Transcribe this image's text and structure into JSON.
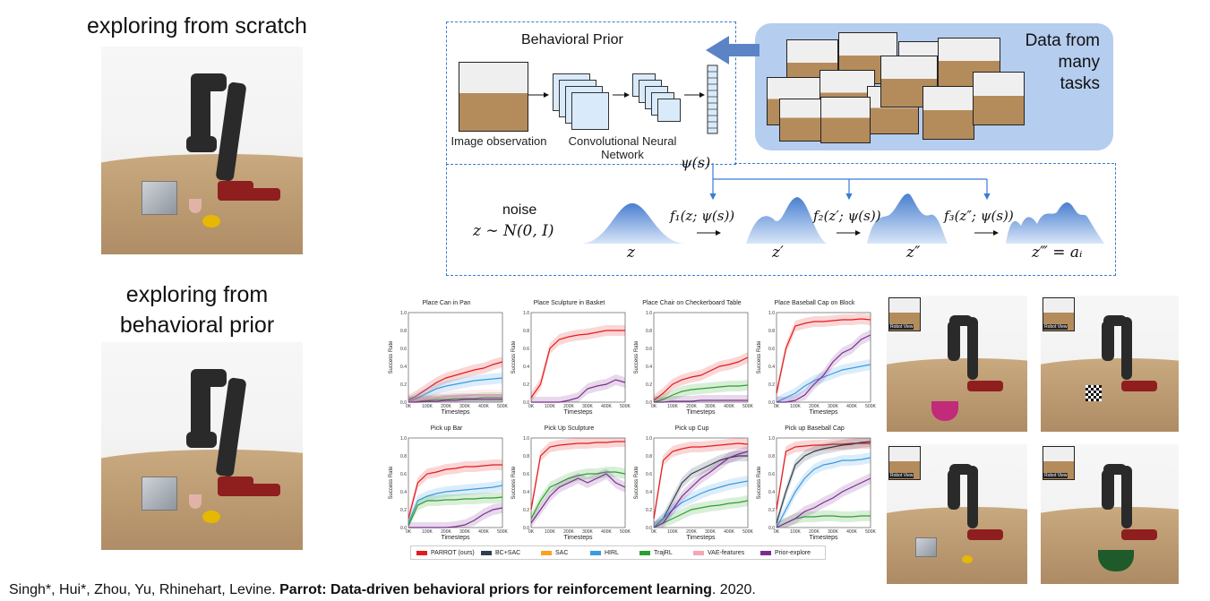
{
  "left": {
    "top_heading": "exploring from scratch",
    "bottom_heading_line1": "exploring from",
    "bottom_heading_line2": "behavioral prior"
  },
  "diagram": {
    "behavioral_prior_title": "Behavioral Prior",
    "data_from_line1": "Data from",
    "data_from_line2": "many",
    "data_from_line3": "tasks",
    "image_observation": "Image observation",
    "cnn_line1": "Convolutional Neural",
    "cnn_line2": "Network",
    "psi": "ψ(s)",
    "noise": "noise",
    "z_dist": "z ∼ N(0, I)",
    "f1": "f₁(z; ψ(s))",
    "f2": "f₂(z′; ψ(s))",
    "f3": "f₃(z″; ψ(s))",
    "z0": "z",
    "z1": "z′",
    "z2": "z″",
    "z3": "z‴ = aᵢ"
  },
  "robot_views": {
    "label": "Robot View"
  },
  "chart_data": [
    {
      "type": "line",
      "title": "Place Can in Pan",
      "xlabel": "Timesteps",
      "ylabel": "Success Rate",
      "ylim": [
        0,
        1.0
      ],
      "xticks": [
        "0K",
        "100K",
        "200K",
        "300K",
        "400K",
        "500K"
      ],
      "yticks": [
        "0.0",
        "0.2",
        "0.4",
        "0.6",
        "0.8",
        "1.0"
      ],
      "x": [
        0,
        50,
        100,
        150,
        200,
        250,
        300,
        350,
        400,
        450,
        500
      ],
      "series": [
        {
          "name": "PARROT (ours)",
          "values": [
            0.02,
            0.08,
            0.15,
            0.22,
            0.27,
            0.3,
            0.33,
            0.36,
            0.38,
            0.42,
            0.45
          ]
        },
        {
          "name": "HIRL",
          "values": [
            0.0,
            0.05,
            0.1,
            0.15,
            0.18,
            0.2,
            0.22,
            0.24,
            0.25,
            0.26,
            0.27
          ]
        },
        {
          "name": "TrajRL",
          "values": [
            0.0,
            0.01,
            0.02,
            0.03,
            0.03,
            0.04,
            0.04,
            0.04,
            0.05,
            0.05,
            0.05
          ]
        },
        {
          "name": "VAE-features",
          "values": [
            0.0,
            0.02,
            0.04,
            0.05,
            0.06,
            0.07,
            0.07,
            0.08,
            0.08,
            0.08,
            0.08
          ]
        },
        {
          "name": "Prior-explore",
          "values": [
            0.0,
            0.0,
            0.01,
            0.01,
            0.02,
            0.02,
            0.03,
            0.03,
            0.03,
            0.03,
            0.03
          ]
        }
      ]
    },
    {
      "type": "line",
      "title": "Place Sculpture in Basket",
      "xlabel": "Timesteps",
      "ylabel": "Success Rate",
      "ylim": [
        0,
        1.0
      ],
      "xticks": [
        "0K",
        "100K",
        "200K",
        "300K",
        "400K",
        "500K"
      ],
      "yticks": [
        "0.0",
        "0.2",
        "0.4",
        "0.6",
        "0.8",
        "1.0"
      ],
      "x": [
        0,
        50,
        100,
        150,
        200,
        250,
        300,
        350,
        400,
        450,
        500
      ],
      "series": [
        {
          "name": "PARROT (ours)",
          "values": [
            0.05,
            0.2,
            0.6,
            0.7,
            0.73,
            0.75,
            0.76,
            0.78,
            0.8,
            0.8,
            0.8
          ]
        },
        {
          "name": "Prior-explore",
          "values": [
            0.0,
            0.0,
            0.0,
            0.0,
            0.02,
            0.05,
            0.15,
            0.18,
            0.2,
            0.25,
            0.22
          ]
        }
      ]
    },
    {
      "type": "line",
      "title": "Place Chair on Checkerboard Table",
      "xlabel": "Timesteps",
      "ylabel": "Success Rate",
      "ylim": [
        0,
        1.0
      ],
      "xticks": [
        "0K",
        "100K",
        "200K",
        "300K",
        "400K",
        "500K"
      ],
      "yticks": [
        "0.0",
        "0.2",
        "0.4",
        "0.6",
        "0.8",
        "1.0"
      ],
      "x": [
        0,
        50,
        100,
        150,
        200,
        250,
        300,
        350,
        400,
        450,
        500
      ],
      "series": [
        {
          "name": "PARROT (ours)",
          "values": [
            0.02,
            0.1,
            0.2,
            0.25,
            0.28,
            0.3,
            0.35,
            0.4,
            0.42,
            0.45,
            0.5
          ]
        },
        {
          "name": "TrajRL",
          "values": [
            0.0,
            0.03,
            0.08,
            0.12,
            0.14,
            0.15,
            0.16,
            0.17,
            0.18,
            0.18,
            0.19
          ]
        },
        {
          "name": "Prior-explore",
          "values": [
            0.0,
            0.0,
            0.01,
            0.01,
            0.01,
            0.02,
            0.02,
            0.02,
            0.02,
            0.02,
            0.02
          ]
        }
      ]
    },
    {
      "type": "line",
      "title": "Place Baseball Cap on Block",
      "xlabel": "Timesteps",
      "ylabel": "Success Rate",
      "ylim": [
        0,
        1.0
      ],
      "xticks": [
        "0K",
        "100K",
        "200K",
        "300K",
        "400K",
        "500K"
      ],
      "yticks": [
        "0.0",
        "0.2",
        "0.4",
        "0.6",
        "0.8",
        "1.0"
      ],
      "x": [
        0,
        50,
        100,
        150,
        200,
        250,
        300,
        350,
        400,
        450,
        500
      ],
      "series": [
        {
          "name": "PARROT (ours)",
          "values": [
            0.1,
            0.6,
            0.85,
            0.88,
            0.9,
            0.9,
            0.91,
            0.92,
            0.92,
            0.93,
            0.92
          ]
        },
        {
          "name": "HIRL",
          "values": [
            0.0,
            0.05,
            0.1,
            0.18,
            0.24,
            0.28,
            0.32,
            0.36,
            0.38,
            0.4,
            0.42
          ]
        },
        {
          "name": "Prior-explore",
          "values": [
            0.0,
            0.0,
            0.02,
            0.08,
            0.2,
            0.3,
            0.45,
            0.55,
            0.6,
            0.7,
            0.75
          ]
        }
      ]
    },
    {
      "type": "line",
      "title": "Pick up Bar",
      "xlabel": "Timesteps",
      "ylabel": "Success Rate",
      "ylim": [
        0,
        1.0
      ],
      "xticks": [
        "0K",
        "100K",
        "200K",
        "300K",
        "400K",
        "500K"
      ],
      "yticks": [
        "0.0",
        "0.2",
        "0.4",
        "0.6",
        "0.8",
        "1.0"
      ],
      "x": [
        0,
        50,
        100,
        150,
        200,
        250,
        300,
        350,
        400,
        450,
        500
      ],
      "series": [
        {
          "name": "PARROT (ours)",
          "values": [
            0.1,
            0.5,
            0.6,
            0.62,
            0.65,
            0.66,
            0.68,
            0.68,
            0.69,
            0.7,
            0.7
          ]
        },
        {
          "name": "HIRL",
          "values": [
            0.05,
            0.3,
            0.35,
            0.38,
            0.4,
            0.41,
            0.42,
            0.43,
            0.44,
            0.45,
            0.47
          ]
        },
        {
          "name": "TrajRL",
          "values": [
            0.02,
            0.25,
            0.3,
            0.3,
            0.31,
            0.31,
            0.32,
            0.32,
            0.33,
            0.33,
            0.34
          ]
        },
        {
          "name": "Prior-explore",
          "values": [
            0.0,
            0.0,
            0.0,
            0.0,
            0.0,
            0.01,
            0.03,
            0.08,
            0.15,
            0.2,
            0.22
          ]
        }
      ]
    },
    {
      "type": "line",
      "title": "Pick Up Sculpture",
      "xlabel": "Timesteps",
      "ylabel": "Success Rate",
      "ylim": [
        0,
        1.0
      ],
      "xticks": [
        "0K",
        "100K",
        "200K",
        "300K",
        "400K",
        "500K"
      ],
      "yticks": [
        "0.0",
        "0.2",
        "0.4",
        "0.6",
        "0.8",
        "1.0"
      ],
      "x": [
        0,
        50,
        100,
        150,
        200,
        250,
        300,
        350,
        400,
        450,
        500
      ],
      "series": [
        {
          "name": "PARROT (ours)",
          "values": [
            0.2,
            0.8,
            0.9,
            0.92,
            0.93,
            0.94,
            0.94,
            0.95,
            0.95,
            0.96,
            0.96
          ]
        },
        {
          "name": "TrajRL",
          "values": [
            0.1,
            0.3,
            0.45,
            0.5,
            0.55,
            0.58,
            0.6,
            0.6,
            0.62,
            0.62,
            0.6
          ]
        },
        {
          "name": "Prior-explore",
          "values": [
            0.05,
            0.2,
            0.35,
            0.45,
            0.5,
            0.55,
            0.5,
            0.55,
            0.6,
            0.5,
            0.45
          ]
        }
      ]
    },
    {
      "type": "line",
      "title": "Pick up Cup",
      "xlabel": "Timesteps",
      "ylabel": "Success Rate",
      "ylim": [
        0,
        1.0
      ],
      "xticks": [
        "0K",
        "100K",
        "200K",
        "300K",
        "400K",
        "500K"
      ],
      "yticks": [
        "0.0",
        "0.2",
        "0.4",
        "0.6",
        "0.8",
        "1.0"
      ],
      "x": [
        0,
        50,
        100,
        150,
        200,
        250,
        300,
        350,
        400,
        450,
        500
      ],
      "series": [
        {
          "name": "PARROT (ours)",
          "values": [
            0.1,
            0.75,
            0.85,
            0.88,
            0.9,
            0.9,
            0.91,
            0.92,
            0.93,
            0.94,
            0.93
          ]
        },
        {
          "name": "BC+SAC",
          "values": [
            0.0,
            0.1,
            0.3,
            0.5,
            0.6,
            0.65,
            0.7,
            0.75,
            0.78,
            0.8,
            0.8
          ]
        },
        {
          "name": "HIRL",
          "values": [
            0.0,
            0.1,
            0.2,
            0.28,
            0.33,
            0.38,
            0.42,
            0.45,
            0.48,
            0.5,
            0.52
          ]
        },
        {
          "name": "TrajRL",
          "values": [
            0.0,
            0.05,
            0.1,
            0.15,
            0.2,
            0.22,
            0.24,
            0.25,
            0.27,
            0.28,
            0.3
          ]
        },
        {
          "name": "Prior-explore",
          "values": [
            0.0,
            0.05,
            0.2,
            0.35,
            0.45,
            0.55,
            0.62,
            0.7,
            0.78,
            0.82,
            0.85
          ]
        }
      ]
    },
    {
      "type": "line",
      "title": "Pick up Baseball Cap",
      "xlabel": "Timesteps",
      "ylabel": "Success Rate",
      "ylim": [
        0,
        1.0
      ],
      "xticks": [
        "0K",
        "100K",
        "200K",
        "300K",
        "400K",
        "500K"
      ],
      "yticks": [
        "0.0",
        "0.2",
        "0.4",
        "0.6",
        "0.8",
        "1.0"
      ],
      "x": [
        0,
        50,
        100,
        150,
        200,
        250,
        300,
        350,
        400,
        450,
        500
      ],
      "series": [
        {
          "name": "PARROT (ours)",
          "values": [
            0.2,
            0.85,
            0.9,
            0.91,
            0.92,
            0.92,
            0.93,
            0.93,
            0.94,
            0.94,
            0.94
          ]
        },
        {
          "name": "BC+SAC",
          "values": [
            0.05,
            0.4,
            0.7,
            0.8,
            0.85,
            0.88,
            0.9,
            0.92,
            0.93,
            0.95,
            0.96
          ]
        },
        {
          "name": "HIRL",
          "values": [
            0.0,
            0.2,
            0.4,
            0.55,
            0.65,
            0.7,
            0.72,
            0.75,
            0.75,
            0.76,
            0.78
          ]
        },
        {
          "name": "TrajRL",
          "values": [
            0.0,
            0.05,
            0.1,
            0.12,
            0.12,
            0.13,
            0.13,
            0.12,
            0.12,
            0.13,
            0.13
          ]
        },
        {
          "name": "Prior-explore",
          "values": [
            0.0,
            0.05,
            0.1,
            0.18,
            0.22,
            0.28,
            0.33,
            0.4,
            0.45,
            0.5,
            0.55
          ]
        }
      ]
    }
  ],
  "legend": {
    "items": [
      {
        "name": "PARROT (ours)",
        "color": "#e41a1c"
      },
      {
        "name": "BC+SAC",
        "color": "#2f3e4f"
      },
      {
        "name": "SAC",
        "color": "#ff9f1c"
      },
      {
        "name": "HIRL",
        "color": "#3b9ae1"
      },
      {
        "name": "TrajRL",
        "color": "#2ca02c"
      },
      {
        "name": "VAE-features",
        "color": "#f4a6b3"
      },
      {
        "name": "Prior-explore",
        "color": "#7b2d8e"
      }
    ]
  },
  "citation": {
    "authors": "Singh*, Hui*, Zhou, Yu, Rhinehart, Levine.",
    "title": "Parrot: Data-driven behavioral priors for reinforcement learning",
    "year": ". 2020."
  }
}
